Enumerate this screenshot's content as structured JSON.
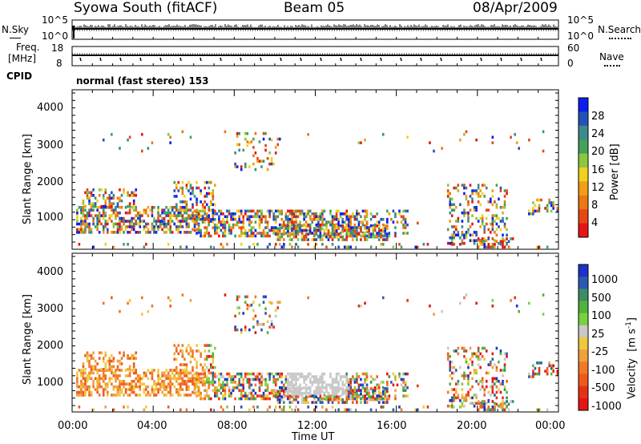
{
  "header": {
    "left": "Syowa South (fitACF)",
    "center": "Beam 05",
    "right": "08/Apr/2009"
  },
  "top_panels": {
    "nsky_label": "N.Sky",
    "nsky_ticks": [
      "10^5",
      "10^0"
    ],
    "nsearch_label": "N.Search",
    "nsearch_ticks": [
      "10^5",
      "10^0"
    ],
    "freq_label": "Freq.",
    "freq_unit": "[MHz]",
    "freq_ticks": [
      "18",
      "8"
    ],
    "nave_label": "Nave",
    "nave_ticks": [
      "60",
      "0"
    ],
    "cpid_label": "CPID",
    "cpid_value": "normal (fast stereo) 153"
  },
  "chart_data": [
    {
      "type": "heatmap",
      "name": "power",
      "ylabel": "Slant Range [km]",
      "yticks": [
        "4000",
        "3000",
        "2000",
        "1000"
      ],
      "ylim": [
        180,
        4500
      ],
      "xlim_hours": [
        0,
        24
      ],
      "colorbar": {
        "label": "Power [dB]",
        "ticks": [
          "28",
          "24",
          "20",
          "16",
          "12",
          "8",
          "4"
        ],
        "colors": [
          "#0a1ef0",
          "#2352b8",
          "#3e8a8a",
          "#45a05a",
          "#8cc83c",
          "#f0d21e",
          "#f0a014",
          "#eb7814",
          "#e64614",
          "#e61414"
        ]
      }
    },
    {
      "type": "heatmap",
      "name": "velocity",
      "ylabel": "Slant Range [km]",
      "yticks": [
        "4000",
        "3000",
        "2000",
        "1000"
      ],
      "ylim": [
        180,
        4500
      ],
      "xlim_hours": [
        0,
        24
      ],
      "colorbar": {
        "label": "Velocity",
        "unit": "[m s",
        "unit_exp": "-1",
        "unit_close": "]",
        "ticks": [
          "1000",
          "500",
          "100",
          "25",
          "-25",
          "-100",
          "-500",
          "-1000"
        ],
        "colors": [
          "#1e32c8",
          "#2a5ab4",
          "#3c8c64",
          "#50b43c",
          "#78d23c",
          "#c8c8c8",
          "#f0c83c",
          "#f0a03c",
          "#f07828",
          "#ee5a1e",
          "#e63214",
          "#e61414"
        ]
      }
    }
  ],
  "x_axis": {
    "ticks": [
      "00:00",
      "04:00",
      "08:00",
      "12:00",
      "16:00",
      "20:00",
      "00:00"
    ],
    "label": "Time UT"
  }
}
